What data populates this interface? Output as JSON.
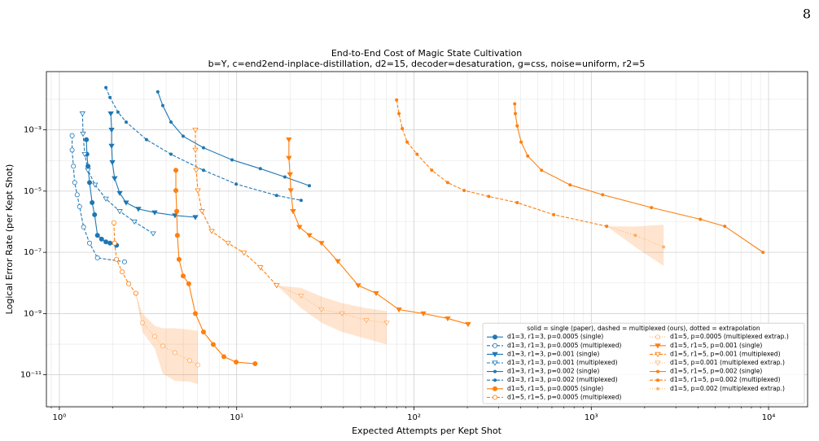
{
  "page_number": "8",
  "chart_data": {
    "type": "line",
    "title": "End-to-End Cost of Magic State Cultivation",
    "subtitle": "b=Y, c=end2end-inplace-distillation, d2=15, decoder=desaturation, g=css, noise=uniform, r2=5",
    "x_label": "Expected Attempts per Kept Shot",
    "y_label": "Logical Error Rate (per Kept Shot)",
    "x_log": true,
    "y_log": true,
    "grid": true,
    "legend_position": "lower right",
    "legend_title": "solid = single (paper),  dashed = multiplexed (ours),  dotted = extrapolation",
    "xlim": [
      0.845,
      16600
    ],
    "ylim": [
      9e-13,
      0.08
    ],
    "xticks": [
      {
        "value": 1,
        "label": "10⁰"
      },
      {
        "value": 10,
        "label": "10¹"
      },
      {
        "value": 100,
        "label": "10²"
      },
      {
        "value": 1000,
        "label": "10³"
      },
      {
        "value": 10000,
        "label": "10⁴"
      }
    ],
    "yticks": [
      {
        "value": 1e-11,
        "label": "10⁻¹¹"
      },
      {
        "value": 1e-09,
        "label": "10⁻⁹"
      },
      {
        "value": 1e-07,
        "label": "10⁻⁷"
      },
      {
        "value": 1e-05,
        "label": "10⁻⁵"
      },
      {
        "value": 0.001,
        "label": "10⁻³"
      }
    ],
    "series": [
      {
        "name": "d1=3, r1=3, p=0.0005 (single)",
        "color": "#1f77b4",
        "marker": "o",
        "filled": true,
        "linestyle": "solid",
        "x": [
          1.42,
          1.43,
          1.45,
          1.48,
          1.53,
          1.58,
          1.64,
          1.73,
          1.83,
          1.93,
          2.1
        ],
        "values": [
          0.00048,
          0.00016,
          6.5e-05,
          1.9e-05,
          4.2e-06,
          1.7e-06,
          3.6e-07,
          2.7e-07,
          2.2e-07,
          2e-07,
          1.7e-07
        ]
      },
      {
        "name": "d1=3, r1=3, p=0.0005 (multiplexed)",
        "color": "#1f77b4",
        "marker": "o",
        "filled": false,
        "linestyle": "dashed",
        "x": [
          1.18,
          1.18,
          1.2,
          1.22,
          1.26,
          1.3,
          1.37,
          1.48,
          1.64,
          2.33
        ],
        "values": [
          0.00065,
          0.00022,
          6.5e-05,
          1.9e-05,
          7.6e-06,
          3.1e-06,
          6.7e-07,
          2e-07,
          6.6e-08,
          4.9e-08
        ]
      },
      {
        "name": "d1=3, r1=3, p=0.001 (single)",
        "color": "#1f77b4",
        "marker": "v",
        "filled": true,
        "linestyle": "solid",
        "x": [
          1.95,
          1.97,
          1.97,
          1.99,
          2.05,
          2.19,
          2.38,
          2.79,
          3.45,
          4.49,
          5.85
        ],
        "values": [
          0.0034,
          0.001,
          0.0003,
          8.7e-05,
          2.6e-05,
          8.6e-06,
          4.2e-06,
          2.6e-06,
          2e-06,
          1.6e-06,
          1.4e-06
        ]
      },
      {
        "name": "d1=3, r1=3, p=0.001 (multiplexed)",
        "color": "#1f77b4",
        "marker": "v",
        "filled": false,
        "linestyle": "dashed",
        "x": [
          1.35,
          1.36,
          1.39,
          1.45,
          1.59,
          1.83,
          2.19,
          2.65,
          3.38
        ],
        "values": [
          0.0034,
          0.00074,
          0.00016,
          4.8e-05,
          1.6e-05,
          5.6e-06,
          2.2e-06,
          1e-06,
          4.1e-07
        ]
      },
      {
        "name": "d1=3, r1=3, p=0.002 (single)",
        "color": "#1f77b4",
        "marker": ".",
        "filled": true,
        "linestyle": "solid",
        "x": [
          3.59,
          3.83,
          4.26,
          4.99,
          6.5,
          9.42,
          13.6,
          18.7,
          25.7
        ],
        "values": [
          0.0175,
          0.0062,
          0.0018,
          0.00062,
          0.00026,
          0.000105,
          5.4e-05,
          2.9e-05,
          1.5e-05
        ]
      },
      {
        "name": "d1=3, r1=3, p=0.002 (multiplexed)",
        "color": "#1f77b4",
        "marker": ".",
        "filled": true,
        "linestyle": "dashed",
        "x": [
          1.83,
          1.93,
          2.14,
          2.38,
          3.1,
          4.26,
          6.5,
          9.93,
          16.8,
          23.1
        ],
        "values": [
          0.024,
          0.0115,
          0.0038,
          0.0018,
          0.00048,
          0.00016,
          4.8e-05,
          1.7e-05,
          7.2e-06,
          5e-06
        ]
      },
      {
        "name": "d1=5, r1=5, p=0.0005 (single)",
        "color": "#ff7f0e",
        "marker": "o",
        "filled": true,
        "linestyle": "solid",
        "x": [
          4.54,
          4.54,
          4.59,
          4.63,
          4.73,
          4.99,
          5.37,
          5.85,
          6.5,
          7.38,
          8.47,
          9.93,
          12.7
        ],
        "values": [
          4.8e-05,
          1.05e-05,
          2.2e-06,
          3.6e-07,
          5.9e-08,
          1.7e-08,
          9.4e-09,
          1e-09,
          2.5e-10,
          9.8e-11,
          3.9e-11,
          2.6e-11,
          2.3e-11
        ]
      },
      {
        "name": "d1=5, r1=5, p=0.0005 (multiplexed)",
        "color": "#ff7f0e",
        "marker": "o",
        "filled": false,
        "linestyle": "dashed",
        "x": [
          2.03,
          2.05,
          2.1,
          2.26,
          2.46,
          2.7
        ],
        "values": [
          9.2e-07,
          2e-07,
          5.9e-08,
          2.3e-08,
          9.4e-09,
          4.6e-09
        ]
      },
      {
        "name": "d1=5, p=0.0005 (multiplexed extrap.)",
        "color": "#ff7f0e",
        "marker": "o",
        "filled": false,
        "linestyle": "dotted",
        "x": [
          2.7,
          2.94,
          3.45,
          3.83,
          4.49,
          5.43,
          6.04
        ],
        "values": [
          4.6e-09,
          5e-10,
          1.8e-10,
          8.7e-11,
          5.3e-11,
          2.9e-11,
          2.1e-11
        ],
        "band_high": [
          4.6e-09,
          1e-09,
          4e-10,
          3.3e-10,
          3.3e-10,
          3e-10,
          2.7e-10
        ],
        "band_low": [
          4.6e-09,
          2.5e-10,
          7.2e-11,
          1.1e-11,
          6.3e-12,
          6e-12,
          5e-12
        ]
      },
      {
        "name": "d1=5, r1=5, p=0.001 (single)",
        "color": "#ff7f0e",
        "marker": "v",
        "filled": true,
        "linestyle": "solid",
        "x": [
          19.7,
          19.7,
          20.0,
          20.2,
          20.8,
          22.6,
          25.7,
          30.1,
          37.2,
          48.5,
          61.2,
          82.3,
          113,
          155,
          202
        ],
        "values": [
          0.00048,
          0.00012,
          3.5e-05,
          1.05e-05,
          2.2e-06,
          6.7e-07,
          3.6e-07,
          2e-07,
          5.1e-08,
          8.3e-09,
          4.6e-09,
          1.35e-09,
          1e-09,
          6.9e-10,
          4.5e-10
        ]
      },
      {
        "name": "d1=5, r1=5, p=0.001 (multiplexed)",
        "color": "#ff7f0e",
        "marker": "v",
        "filled": false,
        "linestyle": "dashed",
        "x": [
          5.85,
          5.85,
          5.91,
          6.04,
          6.37,
          7.23,
          8.93,
          11.0,
          13.6,
          16.8
        ],
        "values": [
          0.001,
          0.00022,
          4.8e-05,
          1.05e-05,
          2.2e-06,
          4.9e-07,
          2e-07,
          9.6e-08,
          3.2e-08,
          8.3e-09
        ]
      },
      {
        "name": "d1=5, p=0.001 (multiplexed extrap.)",
        "color": "#ff7f0e",
        "marker": "v",
        "filled": false,
        "linestyle": "dotted",
        "x": [
          16.8,
          23.1,
          30.1,
          39.3,
          53.9,
          70.3
        ],
        "values": [
          8.3e-09,
          3.8e-09,
          1.35e-09,
          1e-09,
          6e-10,
          5e-10
        ],
        "band_high": [
          8.3e-09,
          6.9e-09,
          3.6e-09,
          2.2e-09,
          1.5e-09,
          1.2e-09
        ],
        "band_low": [
          8.3e-09,
          1.5e-09,
          5e-10,
          2.5e-10,
          1.5e-10,
          9.8e-11
        ]
      },
      {
        "name": "d1=5, r1=5, p=0.002 (single)",
        "color": "#ff7f0e",
        "marker": ".",
        "filled": true,
        "linestyle": "solid",
        "x": [
          370,
          373,
          382,
          402,
          438,
          524,
          759,
          1159,
          2184,
          4123,
          5662,
          9303
        ],
        "values": [
          0.0071,
          0.0034,
          0.00135,
          0.0004,
          0.00014,
          4.8e-05,
          1.6e-05,
          7.6e-06,
          2.9e-06,
          1.2e-06,
          7.1e-07,
          1e-07
        ]
      },
      {
        "name": "d1=5, r1=5, p=0.002 (multiplexed)",
        "color": "#ff7f0e",
        "marker": ".",
        "filled": true,
        "linestyle": "dashed",
        "x": [
          79.8,
          82.3,
          85.9,
          91.5,
          104,
          126,
          155,
          192,
          264,
          382,
          614,
          1222
        ],
        "values": [
          0.0095,
          0.0034,
          0.0011,
          0.0004,
          0.00016,
          4.8e-05,
          1.9e-05,
          1.05e-05,
          6.7e-06,
          4.2e-06,
          1.7e-06,
          7.1e-07
        ]
      },
      {
        "name": "d1=5, p=0.002 (multiplexed extrap.)",
        "color": "#ff7f0e",
        "marker": ".",
        "filled": true,
        "linestyle": "dotted",
        "x": [
          1222,
          1770,
          2560
        ],
        "values": [
          7.1e-07,
          3.6e-07,
          1.5e-07
        ],
        "band_high": [
          7.1e-07,
          7e-07,
          8e-07
        ],
        "band_low": [
          7.1e-07,
          1.5e-07,
          3.6e-08
        ]
      }
    ]
  }
}
